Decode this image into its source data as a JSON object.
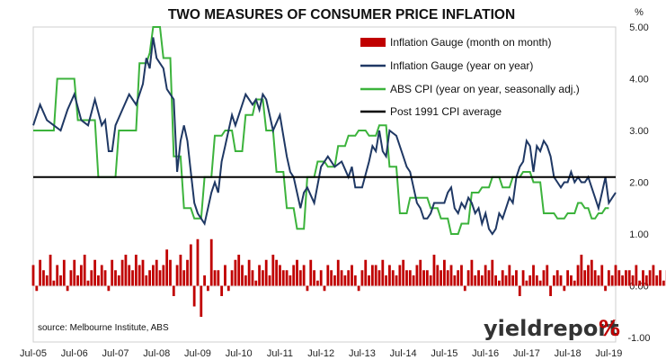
{
  "chart_data": {
    "type": "line",
    "title": "TWO MEASURES OF CONSUMER PRICE INFLATION",
    "yunit": "%",
    "ylim": [
      -1.0,
      5.0
    ],
    "yticks": [
      "5.00",
      "4.00",
      "3.00",
      "2.00",
      "1.00",
      "0.00",
      "-1.00"
    ],
    "ytick_values": [
      5,
      4,
      3,
      2,
      1,
      0,
      -1
    ],
    "xticks": [
      "Jul-05",
      "Jul-06",
      "Jul-07",
      "Jul-08",
      "Jul-09",
      "Jul-10",
      "Jul-11",
      "Jul-12",
      "Jul-13",
      "Jul-14",
      "Jul-15",
      "Jul-16",
      "Jul-17",
      "Jul-18",
      "Jul-19"
    ],
    "x_start": "Jul-05",
    "x_end": "Jul-19",
    "grid": false,
    "legend_position": "top-right",
    "source": "source: Melbourne Institute, ABS",
    "brand": {
      "text": "yieldreport",
      "suffix": "%"
    },
    "colors": {
      "bars": "#c00000",
      "gauge_yoy": "#1f3864",
      "cpi": "#3cb33c",
      "average": "#000000",
      "brand_dark": "#333333"
    },
    "series": [
      {
        "name": "Inflation Gauge (month on month)",
        "kind": "bar",
        "values": [
          0.4,
          -0.1,
          0.5,
          0.3,
          0.2,
          0.6,
          0.1,
          0.4,
          0.2,
          0.5,
          -0.1,
          0.3,
          0.5,
          0.2,
          0.4,
          0.6,
          0.1,
          0.3,
          0.5,
          0.2,
          0.4,
          0.3,
          -0.1,
          0.5,
          0.3,
          0.2,
          0.5,
          0.6,
          0.4,
          0.3,
          0.6,
          0.4,
          0.5,
          0.2,
          0.3,
          0.4,
          0.5,
          0.3,
          0.4,
          0.7,
          0.5,
          -0.2,
          0.4,
          0.6,
          0.3,
          0.5,
          0.8,
          -0.4,
          0.9,
          -0.6,
          0.2,
          -0.1,
          0.9,
          0.3,
          0.3,
          -0.2,
          0.4,
          -0.1,
          0.3,
          0.5,
          0.6,
          0.4,
          0.2,
          0.5,
          0.3,
          0.1,
          0.4,
          0.3,
          0.5,
          0.2,
          0.6,
          0.5,
          0.4,
          0.3,
          0.3,
          0.2,
          0.4,
          0.5,
          0.3,
          0.4,
          -0.1,
          0.5,
          0.3,
          0.1,
          0.3,
          -0.1,
          0.4,
          0.3,
          0.2,
          0.5,
          0.3,
          0.2,
          0.3,
          0.4,
          0.2,
          -0.1,
          0.3,
          0.5,
          0.2,
          0.4,
          0.4,
          0.3,
          0.5,
          0.2,
          0.4,
          0.3,
          0.2,
          0.4,
          0.5,
          0.3,
          0.3,
          0.2,
          0.4,
          0.5,
          0.3,
          0.3,
          0.2,
          0.6,
          0.4,
          0.3,
          0.5,
          0.3,
          0.4,
          0.2,
          0.3,
          0.4,
          -0.1,
          0.3,
          0.5,
          0.2,
          0.3,
          0.2,
          0.4,
          0.3,
          0.5,
          0.2,
          0.1,
          0.3,
          0.2,
          0.4,
          0.2,
          0.3,
          -0.2,
          0.3,
          0.1,
          0.2,
          0.4,
          0.2,
          0.1,
          0.3,
          0.4,
          -0.2,
          0.2,
          0.3,
          0.2,
          -0.1,
          0.3,
          0.2,
          0.1,
          0.4,
          0.6,
          0.3,
          0.4,
          0.5,
          0.3,
          0.2,
          0.4,
          -0.1,
          0.3,
          0.2,
          0.4,
          0.3,
          0.2,
          0.3,
          0.3,
          0.2,
          0.4,
          0.1,
          0.3,
          0.2,
          0.3,
          0.4,
          0.2,
          0.3,
          0.1,
          0.3,
          0.2,
          0.3,
          0.1,
          0.3
        ]
      },
      {
        "name": "Inflation Gauge (year on year)",
        "kind": "line",
        "points": [
          [
            0,
            3.1
          ],
          [
            2,
            3.5
          ],
          [
            4,
            3.2
          ],
          [
            6,
            3.1
          ],
          [
            8,
            3.0
          ],
          [
            10,
            3.4
          ],
          [
            12,
            3.7
          ],
          [
            14,
            3.2
          ],
          [
            16,
            3.1
          ],
          [
            18,
            3.6
          ],
          [
            20,
            3.1
          ],
          [
            21,
            3.2
          ],
          [
            22,
            2.6
          ],
          [
            23,
            2.6
          ],
          [
            24,
            3.1
          ],
          [
            26,
            3.4
          ],
          [
            28,
            3.7
          ],
          [
            30,
            3.5
          ],
          [
            32,
            3.9
          ],
          [
            33,
            4.4
          ],
          [
            34,
            4.2
          ],
          [
            35,
            4.8
          ],
          [
            36,
            4.4
          ],
          [
            37,
            4.3
          ],
          [
            38,
            4.2
          ],
          [
            39,
            3.8
          ],
          [
            41,
            3.6
          ],
          [
            42,
            2.2
          ],
          [
            43,
            2.8
          ],
          [
            44,
            3.1
          ],
          [
            45,
            2.8
          ],
          [
            46,
            2.2
          ],
          [
            47,
            1.6
          ],
          [
            48,
            1.4
          ],
          [
            49,
            1.3
          ],
          [
            50,
            1.2
          ],
          [
            51,
            1.5
          ],
          [
            52,
            1.8
          ],
          [
            53,
            2.0
          ],
          [
            54,
            1.8
          ],
          [
            55,
            2.4
          ],
          [
            56,
            2.7
          ],
          [
            57,
            3.0
          ],
          [
            58,
            3.3
          ],
          [
            59,
            3.1
          ],
          [
            60,
            3.3
          ],
          [
            62,
            3.7
          ],
          [
            64,
            3.5
          ],
          [
            65,
            3.6
          ],
          [
            66,
            3.4
          ],
          [
            67,
            3.7
          ],
          [
            68,
            3.6
          ],
          [
            70,
            3.0
          ],
          [
            72,
            3.3
          ],
          [
            74,
            2.5
          ],
          [
            75,
            2.2
          ],
          [
            76,
            2.1
          ],
          [
            77,
            1.8
          ],
          [
            78,
            1.5
          ],
          [
            79,
            1.8
          ],
          [
            80,
            1.9
          ],
          [
            82,
            1.6
          ],
          [
            84,
            2.3
          ],
          [
            86,
            2.5
          ],
          [
            88,
            2.3
          ],
          [
            90,
            2.4
          ],
          [
            92,
            2.1
          ],
          [
            93,
            2.3
          ],
          [
            94,
            1.9
          ],
          [
            96,
            1.9
          ],
          [
            98,
            2.4
          ],
          [
            99,
            2.7
          ],
          [
            100,
            2.6
          ],
          [
            101,
            3.0
          ],
          [
            102,
            2.6
          ],
          [
            103,
            2.5
          ],
          [
            104,
            3.0
          ],
          [
            106,
            2.9
          ],
          [
            108,
            2.5
          ],
          [
            109,
            2.3
          ],
          [
            110,
            2.2
          ],
          [
            111,
            1.9
          ],
          [
            112,
            1.6
          ],
          [
            113,
            1.5
          ],
          [
            114,
            1.3
          ],
          [
            115,
            1.3
          ],
          [
            116,
            1.4
          ],
          [
            117,
            1.6
          ],
          [
            118,
            1.6
          ],
          [
            120,
            1.6
          ],
          [
            121,
            1.8
          ],
          [
            122,
            1.9
          ],
          [
            123,
            1.5
          ],
          [
            124,
            1.4
          ],
          [
            125,
            1.6
          ],
          [
            126,
            1.5
          ],
          [
            127,
            1.7
          ],
          [
            128,
            1.6
          ],
          [
            129,
            1.4
          ],
          [
            130,
            1.5
          ],
          [
            131,
            1.2
          ],
          [
            132,
            1.4
          ],
          [
            133,
            1.1
          ],
          [
            134,
            1.0
          ],
          [
            135,
            1.1
          ],
          [
            136,
            1.4
          ],
          [
            137,
            1.3
          ],
          [
            138,
            1.5
          ],
          [
            139,
            1.7
          ],
          [
            140,
            1.6
          ],
          [
            141,
            2.1
          ],
          [
            142,
            2.3
          ],
          [
            143,
            2.4
          ],
          [
            144,
            2.8
          ],
          [
            145,
            2.7
          ],
          [
            146,
            2.2
          ],
          [
            147,
            2.7
          ],
          [
            148,
            2.6
          ],
          [
            149,
            2.8
          ],
          [
            150,
            2.7
          ],
          [
            151,
            2.5
          ],
          [
            152,
            2.1
          ],
          [
            153,
            2.0
          ],
          [
            154,
            1.9
          ],
          [
            155,
            2.0
          ],
          [
            156,
            2.0
          ],
          [
            157,
            2.2
          ],
          [
            158,
            2.0
          ],
          [
            159,
            2.1
          ],
          [
            160,
            2.0
          ],
          [
            161,
            2.0
          ],
          [
            162,
            2.1
          ],
          [
            163,
            1.9
          ],
          [
            164,
            1.7
          ],
          [
            165,
            1.5
          ],
          [
            166,
            1.8
          ],
          [
            167,
            2.1
          ],
          [
            168,
            1.6
          ],
          [
            169,
            1.7
          ],
          [
            170,
            1.8
          ]
        ]
      },
      {
        "name": "ABS CPI (year on year, seasonally adj.)",
        "kind": "line",
        "points": [
          [
            0,
            3.0
          ],
          [
            6,
            3.0
          ],
          [
            7,
            4.0
          ],
          [
            12,
            4.0
          ],
          [
            13,
            3.2
          ],
          [
            18,
            3.2
          ],
          [
            19,
            2.1
          ],
          [
            24,
            2.1
          ],
          [
            25,
            3.0
          ],
          [
            30,
            3.0
          ],
          [
            31,
            4.3
          ],
          [
            33,
            4.3
          ],
          [
            34,
            4.5
          ],
          [
            35,
            5.0
          ],
          [
            37,
            5.0
          ],
          [
            38,
            4.4
          ],
          [
            40,
            4.4
          ],
          [
            41,
            2.5
          ],
          [
            43,
            2.5
          ],
          [
            44,
            1.5
          ],
          [
            46,
            1.5
          ],
          [
            47,
            1.3
          ],
          [
            49,
            1.3
          ],
          [
            50,
            2.1
          ],
          [
            52,
            2.1
          ],
          [
            53,
            2.9
          ],
          [
            55,
            2.9
          ],
          [
            56,
            3.0
          ],
          [
            58,
            3.0
          ],
          [
            59,
            2.6
          ],
          [
            61,
            2.6
          ],
          [
            62,
            3.3
          ],
          [
            64,
            3.3
          ],
          [
            65,
            3.6
          ],
          [
            67,
            3.6
          ],
          [
            68,
            3.0
          ],
          [
            70,
            3.0
          ],
          [
            71,
            2.2
          ],
          [
            73,
            2.2
          ],
          [
            74,
            1.5
          ],
          [
            76,
            1.5
          ],
          [
            77,
            1.1
          ],
          [
            79,
            1.1
          ],
          [
            80,
            2.1
          ],
          [
            82,
            2.1
          ],
          [
            83,
            2.4
          ],
          [
            85,
            2.4
          ],
          [
            86,
            2.3
          ],
          [
            88,
            2.3
          ],
          [
            89,
            2.7
          ],
          [
            91,
            2.7
          ],
          [
            92,
            2.9
          ],
          [
            94,
            2.9
          ],
          [
            95,
            3.0
          ],
          [
            97,
            3.0
          ],
          [
            98,
            2.9
          ],
          [
            100,
            2.9
          ],
          [
            101,
            3.1
          ],
          [
            103,
            3.1
          ],
          [
            104,
            2.3
          ],
          [
            106,
            2.3
          ],
          [
            107,
            1.4
          ],
          [
            109,
            1.4
          ],
          [
            110,
            1.7
          ],
          [
            112,
            1.7
          ],
          [
            113,
            1.7
          ],
          [
            115,
            1.7
          ],
          [
            116,
            1.5
          ],
          [
            118,
            1.5
          ],
          [
            119,
            1.3
          ],
          [
            121,
            1.3
          ],
          [
            122,
            1.0
          ],
          [
            124,
            1.0
          ],
          [
            125,
            1.2
          ],
          [
            127,
            1.2
          ],
          [
            128,
            1.8
          ],
          [
            130,
            1.8
          ],
          [
            131,
            1.9
          ],
          [
            133,
            1.9
          ],
          [
            134,
            2.1
          ],
          [
            136,
            2.1
          ],
          [
            137,
            1.9
          ],
          [
            139,
            1.9
          ],
          [
            140,
            2.1
          ],
          [
            142,
            2.1
          ],
          [
            143,
            2.2
          ],
          [
            145,
            2.2
          ],
          [
            146,
            2.0
          ],
          [
            148,
            2.0
          ],
          [
            149,
            1.4
          ],
          [
            151,
            1.4
          ],
          [
            152,
            1.4
          ],
          [
            153,
            1.3
          ],
          [
            155,
            1.3
          ],
          [
            156,
            1.4
          ],
          [
            158,
            1.4
          ],
          [
            159,
            1.6
          ],
          [
            160,
            1.6
          ],
          [
            161,
            1.5
          ],
          [
            162,
            1.5
          ],
          [
            163,
            1.3
          ],
          [
            164,
            1.3
          ],
          [
            165,
            1.4
          ],
          [
            166,
            1.4
          ],
          [
            167,
            1.5
          ],
          [
            168,
            1.5
          ]
        ]
      },
      {
        "name": "Post 1991 CPI average",
        "kind": "hline",
        "value": 2.1
      }
    ]
  }
}
